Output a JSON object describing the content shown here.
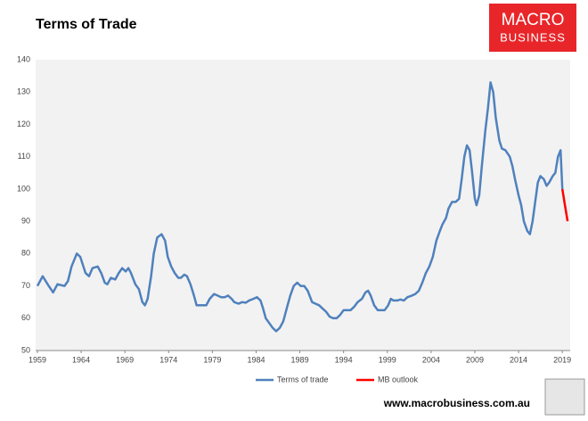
{
  "chart_data": {
    "type": "line",
    "title": "Terms of Trade",
    "logo": [
      "MACRO",
      "BUSINESS"
    ],
    "footer": "www.macrobusiness.com.au",
    "xlim": [
      1958.8,
      2019.9
    ],
    "xticks": [
      1959,
      1964,
      1969,
      1974,
      1979,
      1984,
      1989,
      1994,
      1999,
      2004,
      2009,
      2014,
      2019
    ],
    "ylim": [
      50,
      140
    ],
    "yticks": [
      50,
      60,
      70,
      80,
      90,
      100,
      110,
      120,
      130,
      140
    ],
    "grid": false,
    "legend": "bottom",
    "series": [
      {
        "name": "Terms of trade",
        "color": "#4f81bd",
        "x": [
          1959.0,
          1959.6,
          1960.3,
          1960.8,
          1961.3,
          1962.1,
          1962.5,
          1962.9,
          1963.5,
          1963.9,
          1964.5,
          1964.9,
          1965.3,
          1965.9,
          1966.3,
          1966.7,
          1967.0,
          1967.4,
          1967.9,
          1968.3,
          1968.7,
          1969.1,
          1969.4,
          1969.7,
          1970.2,
          1970.6,
          1971.0,
          1971.3,
          1971.6,
          1972.0,
          1972.3,
          1972.7,
          1973.2,
          1973.6,
          1973.9,
          1974.3,
          1974.7,
          1975.1,
          1975.4,
          1975.8,
          1976.1,
          1976.5,
          1976.9,
          1977.2,
          1977.7,
          1978.3,
          1978.7,
          1979.2,
          1979.6,
          1980.0,
          1980.4,
          1980.8,
          1981.2,
          1981.5,
          1982.0,
          1982.4,
          1982.8,
          1983.2,
          1983.7,
          1984.1,
          1984.5,
          1984.8,
          1985.1,
          1985.5,
          1985.9,
          1986.3,
          1986.7,
          1987.1,
          1987.5,
          1987.9,
          1988.3,
          1988.7,
          1989.1,
          1989.5,
          1989.9,
          1990.4,
          1990.8,
          1991.2,
          1991.6,
          1992.0,
          1992.4,
          1992.8,
          1993.2,
          1993.6,
          1994.0,
          1994.4,
          1994.8,
          1995.2,
          1995.6,
          1996.1,
          1996.5,
          1996.8,
          1997.1,
          1997.5,
          1997.9,
          1998.3,
          1998.7,
          1999.1,
          1999.4,
          1999.7,
          2000.1,
          2000.5,
          2000.9,
          2001.3,
          2001.8,
          2002.2,
          2002.6,
          2003.0,
          2003.4,
          2003.8,
          2004.2,
          2004.6,
          2005.0,
          2005.3,
          2005.7,
          2006.0,
          2006.4,
          2006.8,
          2007.2,
          2007.5,
          2007.8,
          2008.1,
          2008.4,
          2008.7,
          2009.0,
          2009.2,
          2009.5,
          2009.8,
          2010.2,
          2010.5,
          2010.8,
          2011.1,
          2011.4,
          2011.8,
          2012.1,
          2012.5,
          2013.0,
          2013.3,
          2013.6,
          2014.0,
          2014.3,
          2014.6,
          2015.0,
          2015.3,
          2015.6,
          2015.9,
          2016.2,
          2016.5,
          2016.9,
          2017.2,
          2017.5,
          2017.9,
          2018.2,
          2018.5,
          2018.8,
          2019.0
        ],
        "values": [
          70,
          73,
          70,
          68,
          70.5,
          70,
          71.5,
          76,
          80,
          79,
          74,
          73,
          75.5,
          76,
          74,
          71,
          70.5,
          72.5,
          72,
          74,
          75.5,
          74.5,
          75.5,
          74,
          70.5,
          69,
          65,
          64,
          66,
          73,
          80,
          85,
          86,
          84,
          79,
          76,
          74,
          72.5,
          72.5,
          73.5,
          73,
          70.5,
          67,
          64,
          64,
          64,
          66,
          67.5,
          67,
          66.5,
          66.5,
          67,
          66,
          65,
          64.5,
          65,
          64.8,
          65.5,
          66,
          66.5,
          65.5,
          63,
          60,
          58.5,
          57,
          56,
          57,
          59,
          63,
          67,
          70,
          71,
          70,
          70,
          68.5,
          65,
          64.5,
          64,
          63,
          62,
          60.5,
          60,
          60,
          61,
          62.5,
          62.5,
          62.5,
          63.5,
          65,
          66,
          68,
          68.5,
          67,
          64,
          62.5,
          62.5,
          62.5,
          64,
          66,
          65.5,
          65.5,
          65.8,
          65.5,
          66.5,
          67,
          67.5,
          68.5,
          71,
          74,
          76,
          79,
          84,
          87,
          89,
          91,
          94,
          96,
          96,
          97,
          103,
          110,
          113.5,
          112,
          105,
          97,
          95,
          98,
          107,
          118,
          125,
          133,
          130,
          122,
          115,
          112.5,
          112,
          110,
          107,
          103,
          98,
          95,
          90,
          87,
          86,
          90,
          96,
          102,
          104,
          103,
          101,
          102,
          104,
          105,
          110,
          112,
          100
        ]
      },
      {
        "name": "MB outlook",
        "color": "#ff0000",
        "x": [
          2019.0,
          2019.3,
          2019.6
        ],
        "values": [
          100,
          95,
          90
        ]
      }
    ]
  }
}
